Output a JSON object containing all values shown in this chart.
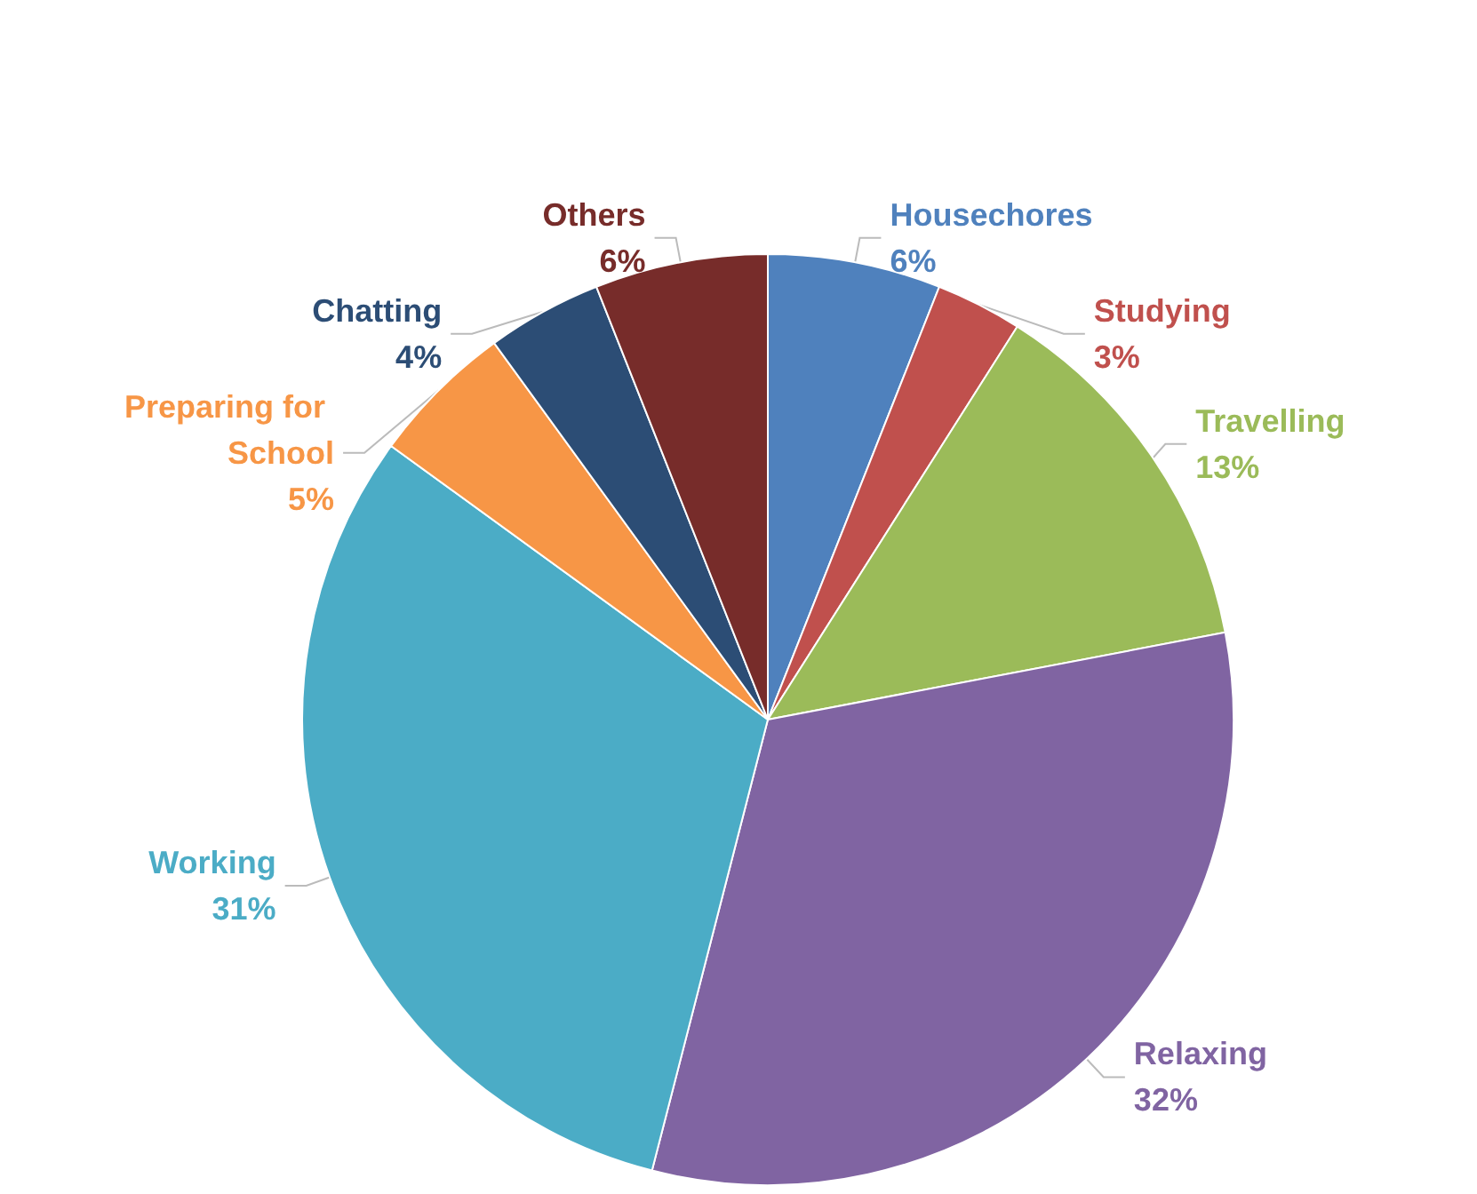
{
  "chart_data": {
    "type": "pie",
    "categories": [
      "Housechores",
      "Studying",
      "Travelling",
      "Relaxing",
      "Working",
      "Preparing for School",
      "Chatting",
      "Others"
    ],
    "values": [
      6,
      3,
      13,
      32,
      31,
      5,
      4,
      6
    ],
    "value_labels": [
      "6%",
      "3%",
      "13%",
      "32%",
      "31%",
      "5%",
      "4%",
      "6%"
    ],
    "colors": [
      "#4f81bd",
      "#c0504d",
      "#9bbb59",
      "#8064a2",
      "#4bacc6",
      "#f79646",
      "#2c4d75",
      "#772c2a"
    ],
    "legend": false
  }
}
